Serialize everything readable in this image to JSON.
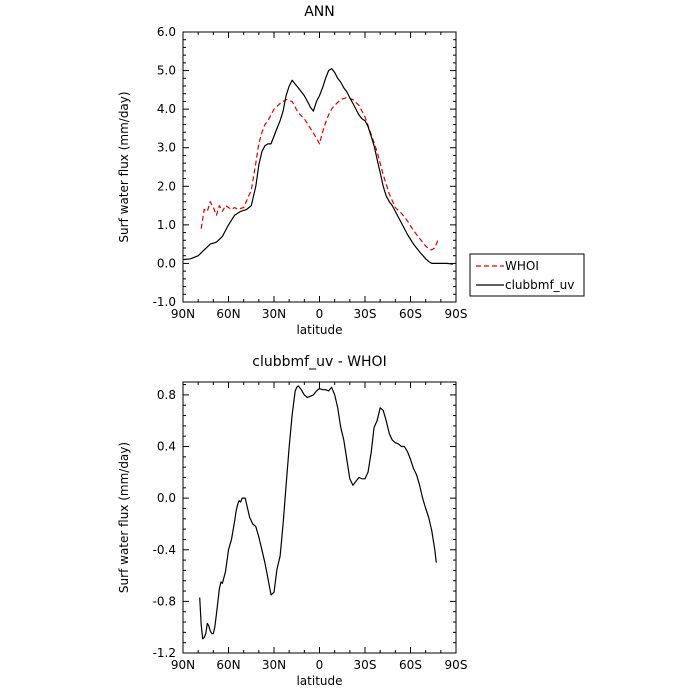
{
  "chart_data": [
    {
      "type": "line",
      "title": "ANN",
      "xlabel": "latitude",
      "ylabel": "Surf water flux (mm/day)",
      "xlim": [
        90,
        -90
      ],
      "ylim": [
        -1.0,
        6.0
      ],
      "xticks": [
        90,
        60,
        30,
        0,
        -30,
        -60,
        -90
      ],
      "xtick_labels": [
        "90N",
        "60N",
        "30N",
        "0",
        "30S",
        "60S",
        "90S"
      ],
      "yticks": [
        -1.0,
        0.0,
        1.0,
        2.0,
        3.0,
        4.0,
        5.0,
        6.0
      ],
      "ytick_labels": [
        "-1.0",
        "0.0",
        "1.0",
        "2.0",
        "3.0",
        "4.0",
        "5.0",
        "6.0"
      ],
      "grid": false,
      "legend_position": "right",
      "series": [
        {
          "name": "WHOI",
          "color": "#e00000",
          "style": "dashed",
          "x": [
            78,
            76,
            74,
            72,
            70,
            68,
            66,
            64,
            62,
            60,
            58,
            56,
            54,
            50,
            45,
            42,
            40,
            38,
            36,
            34,
            32,
            30,
            26,
            22,
            18,
            14,
            10,
            6,
            2,
            0,
            -2,
            -4,
            -6,
            -8,
            -10,
            -14,
            -18,
            -22,
            -26,
            -30,
            -34,
            -38,
            -42,
            -46,
            -50,
            -54,
            -58,
            -62,
            -66,
            -70,
            -72,
            -74,
            -76,
            -78
          ],
          "y": [
            0.9,
            1.4,
            1.35,
            1.6,
            1.45,
            1.25,
            1.5,
            1.35,
            1.5,
            1.45,
            1.4,
            1.45,
            1.4,
            1.45,
            1.9,
            2.6,
            3.1,
            3.4,
            3.6,
            3.7,
            3.85,
            4.0,
            4.15,
            4.25,
            4.2,
            3.9,
            3.75,
            3.5,
            3.25,
            3.1,
            3.4,
            3.65,
            3.85,
            4.0,
            4.1,
            4.25,
            4.3,
            4.25,
            4.1,
            3.8,
            3.35,
            2.9,
            2.3,
            1.8,
            1.45,
            1.3,
            1.1,
            0.85,
            0.65,
            0.45,
            0.38,
            0.35,
            0.4,
            0.6
          ]
        },
        {
          "name": "clubbmf_uv",
          "color": "#000000",
          "style": "solid",
          "x": [
            90,
            85,
            80,
            76,
            72,
            68,
            64,
            60,
            56,
            52,
            48,
            45,
            42,
            40,
            38,
            36,
            34,
            32,
            30,
            28,
            26,
            24,
            22,
            20,
            18,
            16,
            14,
            12,
            10,
            8,
            6,
            4,
            2,
            0,
            -2,
            -4,
            -6,
            -8,
            -10,
            -12,
            -14,
            -16,
            -18,
            -20,
            -22,
            -24,
            -26,
            -28,
            -30,
            -32,
            -34,
            -36,
            -38,
            -40,
            -42,
            -44,
            -46,
            -48,
            -50,
            -54,
            -58,
            -62,
            -66,
            -70,
            -72,
            -74,
            -76,
            -78,
            -80,
            -84,
            -88
          ],
          "y": [
            0.1,
            0.12,
            0.2,
            0.35,
            0.5,
            0.55,
            0.7,
            1.0,
            1.25,
            1.35,
            1.4,
            1.5,
            2.0,
            2.55,
            2.9,
            3.05,
            3.1,
            3.1,
            3.3,
            3.5,
            3.7,
            3.95,
            4.35,
            4.6,
            4.75,
            4.65,
            4.55,
            4.45,
            4.35,
            4.2,
            4.05,
            3.95,
            4.2,
            4.35,
            4.55,
            4.8,
            5.0,
            5.05,
            4.95,
            4.8,
            4.7,
            4.55,
            4.45,
            4.3,
            4.15,
            4.0,
            3.85,
            3.75,
            3.7,
            3.55,
            3.3,
            3.05,
            2.7,
            2.35,
            2.0,
            1.75,
            1.6,
            1.5,
            1.35,
            1.05,
            0.75,
            0.5,
            0.3,
            0.12,
            0.05,
            0.0,
            0.0,
            0.0,
            0.0,
            0.0,
            -0.02
          ]
        }
      ]
    },
    {
      "type": "line",
      "title": "clubbmf_uv - WHOI",
      "xlabel": "latitude",
      "ylabel": "Surf water flux (mm/day)",
      "xlim": [
        90,
        -90
      ],
      "ylim": [
        -1.2,
        0.9
      ],
      "xticks": [
        90,
        60,
        30,
        0,
        -30,
        -60,
        -90
      ],
      "xtick_labels": [
        "90N",
        "60N",
        "30N",
        "0",
        "30S",
        "60S",
        "90S"
      ],
      "yticks": [
        -1.2,
        -0.8,
        -0.4,
        0.0,
        0.4,
        0.8
      ],
      "ytick_labels": [
        "-1.2",
        "-0.8",
        "-0.4",
        "0.0",
        "0.4",
        "0.8"
      ],
      "grid": false,
      "series": [
        {
          "name": "",
          "color": "#000000",
          "style": "solid",
          "x": [
            79,
            78,
            77,
            76,
            75,
            74,
            73,
            72,
            71,
            70,
            69,
            68,
            67,
            66,
            65,
            64,
            62,
            60,
            58,
            56,
            55,
            54,
            53,
            52,
            51,
            50,
            49,
            48,
            46,
            44,
            42,
            40,
            38,
            36,
            34,
            32,
            30,
            28,
            26,
            24,
            22,
            20,
            18,
            16,
            15,
            14,
            12,
            10,
            8,
            6,
            4,
            2,
            0,
            -2,
            -4,
            -6,
            -8,
            -10,
            -12,
            -14,
            -16,
            -18,
            -20,
            -22,
            -24,
            -26,
            -28,
            -30,
            -32,
            -34,
            -36,
            -38,
            -40,
            -42,
            -44,
            -46,
            -48,
            -50,
            -52,
            -54,
            -56,
            -58,
            -60,
            -62,
            -64,
            -66,
            -68,
            -70,
            -72,
            -74,
            -76,
            -77
          ],
          "y": [
            -0.77,
            -0.98,
            -1.09,
            -1.08,
            -1.05,
            -0.97,
            -0.99,
            -1.03,
            -1.05,
            -1.05,
            -1.0,
            -0.9,
            -0.8,
            -0.7,
            -0.65,
            -0.66,
            -0.57,
            -0.4,
            -0.32,
            -0.18,
            -0.1,
            -0.05,
            -0.02,
            -0.03,
            0.0,
            0.0,
            0.0,
            -0.05,
            -0.15,
            -0.2,
            -0.22,
            -0.3,
            -0.4,
            -0.5,
            -0.62,
            -0.75,
            -0.73,
            -0.55,
            -0.45,
            -0.2,
            0.1,
            0.4,
            0.65,
            0.83,
            0.86,
            0.87,
            0.84,
            0.8,
            0.78,
            0.79,
            0.8,
            0.83,
            0.85,
            0.84,
            0.84,
            0.83,
            0.86,
            0.8,
            0.7,
            0.55,
            0.45,
            0.3,
            0.15,
            0.1,
            0.13,
            0.16,
            0.15,
            0.15,
            0.2,
            0.35,
            0.55,
            0.6,
            0.7,
            0.68,
            0.6,
            0.5,
            0.45,
            0.43,
            0.42,
            0.4,
            0.4,
            0.36,
            0.3,
            0.23,
            0.18,
            0.1,
            0.0,
            -0.08,
            -0.15,
            -0.25,
            -0.4,
            -0.5
          ]
        }
      ]
    }
  ]
}
